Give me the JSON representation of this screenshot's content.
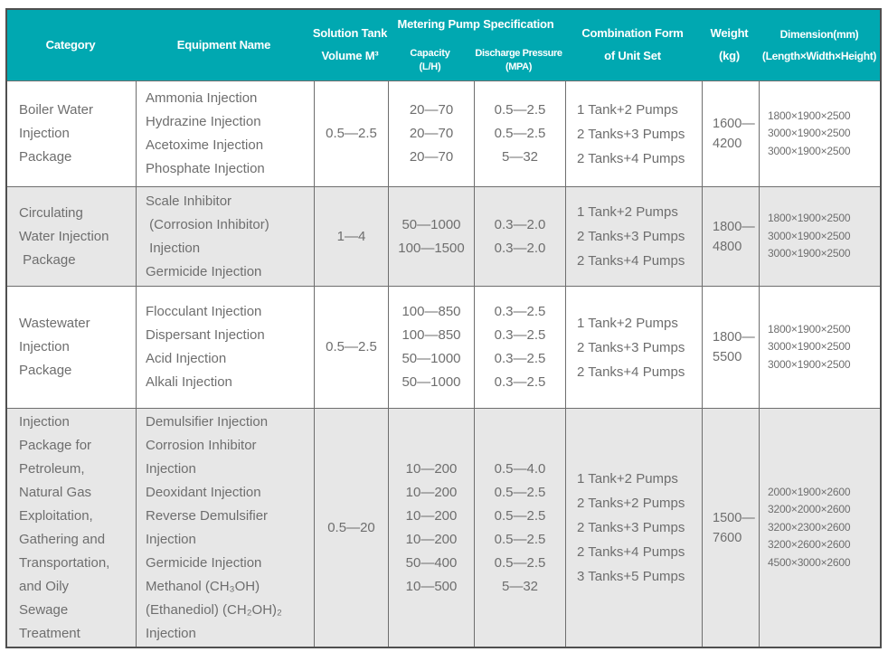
{
  "colors": {
    "header_bg": "#00A8B1",
    "header_text": "#FFFFFF",
    "body_text": "#6E6E6E",
    "grid_line": "#6E6E6E",
    "outer_border": "#4F4F4F",
    "row_alt_bg": "#E7E7E7",
    "row_bg": "#FFFFFF"
  },
  "header": {
    "category": "Category",
    "equipment": "Equipment Name",
    "tank": "Solution Tank\nVolume M³",
    "pump_spec": "Metering Pump Specification",
    "capacity": "Capacity\n(L/H)",
    "discharge": "Discharge Pressure\n(MPA)",
    "combination": "Combination Form\nof Unit Set",
    "weight": "Weight\n(kg)",
    "dimension": "Dimension(mm)\n(Length×Width×Height)"
  },
  "rows": [
    {
      "category": "Boiler Water\nInjection\nPackage",
      "equipment": "Ammonia Injection\nHydrazine Injection\nAcetoxime Injection\nPhosphate Injection",
      "tank": "0.5—2.5",
      "capacity": "20—70\n20—70\n20—70",
      "discharge": "0.5—2.5\n0.5—2.5\n5—32",
      "combination": "1 Tank+2 Pumps\n2 Tanks+3 Pumps\n2 Tanks+4 Pumps",
      "weight": "1600—\n4200",
      "dimension": "1800×1900×2500\n3000×1900×2500\n3000×1900×2500"
    },
    {
      "category": "Circulating\nWater Injection\n Package",
      "equipment": "Scale Inhibitor\n (Corrosion Inhibitor)\n Injection\nGermicide Injection",
      "tank": "1—4",
      "capacity": "50—1000\n100—1500",
      "discharge": "0.3—2.0\n0.3—2.0",
      "combination": "1 Tank+2 Pumps\n2 Tanks+3 Pumps\n2 Tanks+4 Pumps",
      "weight": "1800—\n4800",
      "dimension": "1800×1900×2500\n3000×1900×2500\n3000×1900×2500"
    },
    {
      "category": "Wastewater\nInjection\nPackage",
      "equipment": "Flocculant Injection\nDispersant Injection\nAcid Injection\nAlkali Injection",
      "tank": "0.5—2.5",
      "capacity": "100—850\n100—850\n50—1000\n50—1000",
      "discharge": "0.3—2.5\n0.3—2.5\n0.3—2.5\n0.3—2.5",
      "combination": "1 Tank+2 Pumps\n2 Tanks+3 Pumps\n2 Tanks+4 Pumps",
      "weight": "1800—\n5500",
      "dimension": "1800×1900×2500\n3000×1900×2500\n3000×1900×2500"
    },
    {
      "category": "Injection\nPackage for\nPetroleum,\nNatural Gas\nExploitation,\nGathering and\nTransportation,\nand Oily\nSewage\nTreatment",
      "equipment": "Demulsifier Injection\nCorrosion Inhibitor\nInjection\nDeoxidant Injection\nReverse Demulsifier\nInjection\nGermicide Injection\nMethanol (CH₃OH)\n(Ethanediol) (CH₂OH)₂\nInjection",
      "tank": "0.5—20",
      "capacity": "10—200\n10—200\n10—200\n10—200\n50—400\n10—500",
      "discharge": "0.5—4.0\n0.5—2.5\n0.5—2.5\n0.5—2.5\n0.5—2.5\n5—32",
      "combination": "1 Tank+2 Pumps\n2 Tanks+2 Pumps\n2 Tanks+3 Pumps\n2 Tanks+4 Pumps\n3 Tanks+5 Pumps",
      "weight": "1500—\n7600",
      "dimension": "2000×1900×2600\n3200×2000×2600\n3200×2300×2600\n3200×2600×2600\n4500×3000×2600"
    }
  ]
}
